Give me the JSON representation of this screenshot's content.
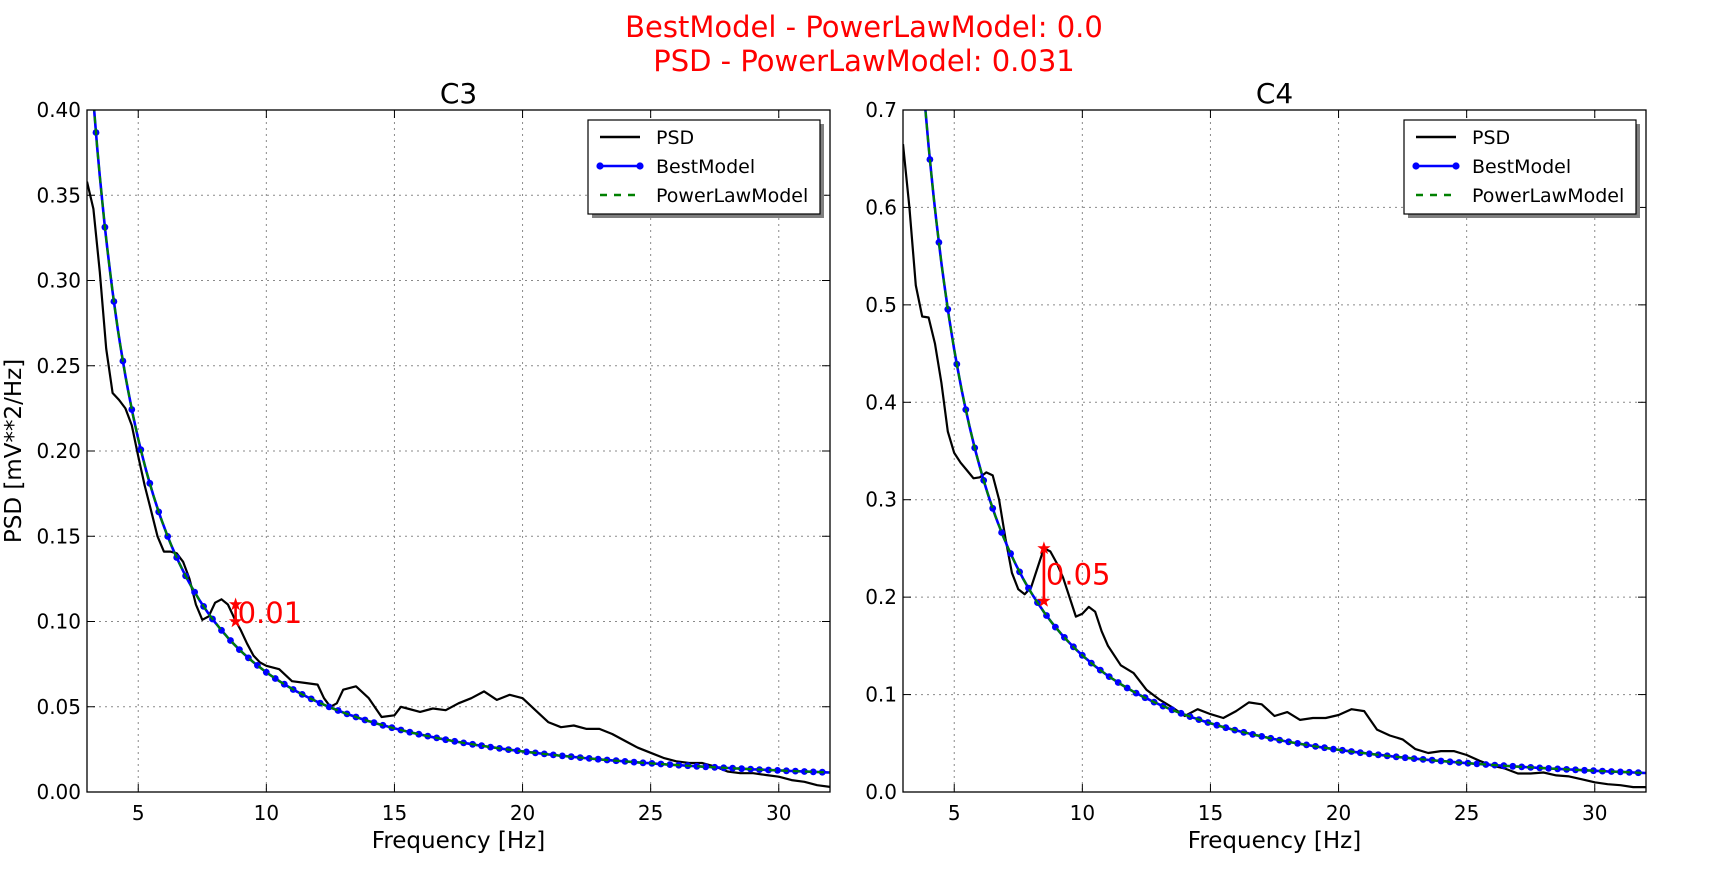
{
  "figure": {
    "suptitle_line1": "BestModel - PowerLawModel: 0.0",
    "suptitle_line2": "PSD - PowerLawModel: 0.031",
    "suptitle_color": "#ff0000"
  },
  "colors": {
    "psd": "#000000",
    "best_model": "#0000ff",
    "power_law": "#008000",
    "annotation": "#ff0000",
    "grid": "#8a8a8a"
  },
  "chart_data": [
    {
      "type": "line",
      "title": "C3",
      "xlabel": "Frequency [Hz]",
      "ylabel": "PSD [mV**2/Hz]",
      "xlim": [
        3,
        32
      ],
      "ylim": [
        0,
        0.4
      ],
      "xticks": [
        5,
        10,
        15,
        20,
        25,
        30
      ],
      "xtick_labels": [
        "5",
        "10",
        "15",
        "20",
        "25",
        "30"
      ],
      "yticks": [
        0,
        0.05,
        0.1,
        0.15,
        0.2,
        0.25,
        0.3,
        0.35,
        0.4
      ],
      "ytick_labels": [
        "0.00",
        "0.05",
        "0.10",
        "0.15",
        "0.20",
        "0.25",
        "0.30",
        "0.35",
        "0.40"
      ],
      "grid": true,
      "legend_position": "top-right",
      "series": [
        {
          "name": "PSD",
          "style": "solid",
          "x": [
            3.0,
            3.25,
            3.5,
            3.75,
            4.0,
            4.25,
            4.5,
            4.75,
            5.0,
            5.25,
            5.5,
            5.75,
            6.0,
            6.25,
            6.5,
            6.75,
            7.0,
            7.25,
            7.5,
            7.75,
            8.0,
            8.25,
            8.5,
            8.75,
            9.0,
            9.25,
            9.5,
            9.75,
            10.0,
            10.5,
            11.0,
            11.5,
            12.0,
            12.25,
            12.5,
            12.75,
            13.0,
            13.5,
            14.0,
            14.5,
            15.0,
            15.25,
            15.5,
            16.0,
            16.5,
            17.0,
            17.5,
            18.0,
            18.5,
            19.0,
            19.5,
            20.0,
            20.5,
            21.0,
            21.5,
            22.0,
            22.5,
            23.0,
            23.5,
            24.0,
            24.5,
            25.0,
            25.5,
            26.0,
            26.5,
            27.0,
            27.5,
            28.0,
            28.5,
            29.0,
            29.5,
            30.0,
            30.5,
            31.0,
            31.5,
            32.0
          ],
          "y": [
            0.358,
            0.342,
            0.305,
            0.26,
            0.234,
            0.23,
            0.225,
            0.215,
            0.197,
            0.18,
            0.165,
            0.15,
            0.141,
            0.141,
            0.14,
            0.135,
            0.125,
            0.11,
            0.101,
            0.103,
            0.111,
            0.113,
            0.11,
            0.102,
            0.095,
            0.087,
            0.08,
            0.076,
            0.074,
            0.072,
            0.065,
            0.064,
            0.063,
            0.055,
            0.05,
            0.052,
            0.06,
            0.062,
            0.055,
            0.044,
            0.045,
            0.05,
            0.049,
            0.047,
            0.049,
            0.048,
            0.052,
            0.055,
            0.059,
            0.054,
            0.057,
            0.055,
            0.048,
            0.041,
            0.038,
            0.039,
            0.037,
            0.037,
            0.034,
            0.03,
            0.026,
            0.023,
            0.02,
            0.018,
            0.017,
            0.017,
            0.015,
            0.012,
            0.011,
            0.011,
            0.01,
            0.009,
            0.007,
            0.006,
            0.004,
            0.003
          ]
        },
        {
          "name": "BestModel",
          "style": "line-with-dots",
          "power_law": {
            "a": 2.55,
            "b": 1.56
          },
          "x_start": 3.0,
          "x_end": 32.0,
          "x_step": 0.35
        },
        {
          "name": "PowerLawModel",
          "style": "dashed",
          "power_law": {
            "a": 2.55,
            "b": 1.56
          },
          "x_start": 3.0,
          "x_end": 32.0
        }
      ],
      "annotation": {
        "label": "0.01",
        "x": 8.8,
        "y_top": 0.11,
        "y_bottom": 0.1
      }
    },
    {
      "type": "line",
      "title": "C4",
      "xlabel": "Frequency [Hz]",
      "ylabel": "",
      "xlim": [
        3,
        32
      ],
      "ylim": [
        0,
        0.7
      ],
      "xticks": [
        5,
        10,
        15,
        20,
        25,
        30
      ],
      "xtick_labels": [
        "5",
        "10",
        "15",
        "20",
        "25",
        "30"
      ],
      "yticks": [
        0,
        0.1,
        0.2,
        0.3,
        0.4,
        0.5,
        0.6,
        0.7
      ],
      "ytick_labels": [
        "0.0",
        "0.1",
        "0.2",
        "0.3",
        "0.4",
        "0.5",
        "0.6",
        "0.7"
      ],
      "grid": true,
      "legend_position": "top-right",
      "series": [
        {
          "name": "PSD",
          "style": "solid",
          "x": [
            3.0,
            3.25,
            3.5,
            3.75,
            4.0,
            4.25,
            4.5,
            4.75,
            5.0,
            5.25,
            5.5,
            5.75,
            6.0,
            6.25,
            6.5,
            6.75,
            7.0,
            7.25,
            7.5,
            7.75,
            8.0,
            8.25,
            8.5,
            8.75,
            9.0,
            9.25,
            9.5,
            9.75,
            10.0,
            10.25,
            10.5,
            10.75,
            11.0,
            11.5,
            12.0,
            12.5,
            13.0,
            13.5,
            14.0,
            14.5,
            15.0,
            15.5,
            16.0,
            16.5,
            17.0,
            17.5,
            18.0,
            18.5,
            19.0,
            19.5,
            20.0,
            20.5,
            21.0,
            21.5,
            22.0,
            22.5,
            23.0,
            23.5,
            24.0,
            24.5,
            25.0,
            25.5,
            26.0,
            26.5,
            27.0,
            27.5,
            28.0,
            28.5,
            29.0,
            29.5,
            30.0,
            30.5,
            31.0,
            31.5,
            32.0
          ],
          "y": [
            0.665,
            0.6,
            0.52,
            0.488,
            0.487,
            0.46,
            0.42,
            0.37,
            0.348,
            0.338,
            0.33,
            0.322,
            0.323,
            0.328,
            0.325,
            0.3,
            0.26,
            0.225,
            0.208,
            0.203,
            0.21,
            0.23,
            0.25,
            0.247,
            0.235,
            0.22,
            0.2,
            0.18,
            0.183,
            0.19,
            0.185,
            0.165,
            0.15,
            0.13,
            0.122,
            0.105,
            0.095,
            0.087,
            0.078,
            0.085,
            0.08,
            0.076,
            0.083,
            0.092,
            0.09,
            0.078,
            0.082,
            0.074,
            0.076,
            0.076,
            0.079,
            0.085,
            0.083,
            0.064,
            0.058,
            0.054,
            0.044,
            0.04,
            0.042,
            0.042,
            0.038,
            0.032,
            0.027,
            0.024,
            0.019,
            0.019,
            0.02,
            0.017,
            0.016,
            0.013,
            0.01,
            0.008,
            0.007,
            0.005,
            0.005
          ]
        },
        {
          "name": "BestModel",
          "style": "line-with-dots",
          "power_law": {
            "a": 6.95,
            "b": 1.695
          },
          "x_start": 3.0,
          "x_end": 32.0,
          "x_step": 0.35
        },
        {
          "name": "PowerLawModel",
          "style": "dashed",
          "power_law": {
            "a": 6.95,
            "b": 1.695
          },
          "x_start": 3.0,
          "x_end": 32.0
        }
      ],
      "annotation": {
        "label": "0.05",
        "x": 8.5,
        "y_top": 0.25,
        "y_bottom": 0.196
      }
    }
  ]
}
